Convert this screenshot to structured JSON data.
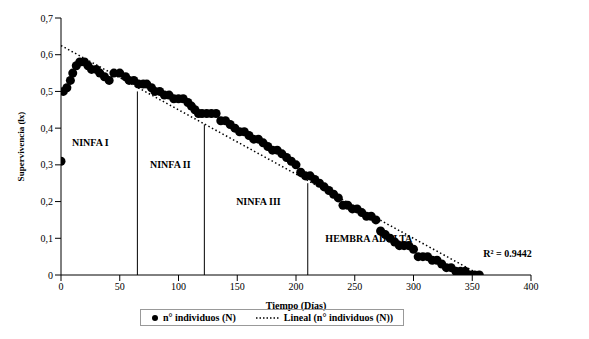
{
  "chart_data": {
    "type": "scatter",
    "x_label": "Tiempo (Días)",
    "y_label": "Supervivencia (lx)",
    "xlim": [
      0,
      400
    ],
    "xticks": [
      0,
      50,
      100,
      150,
      200,
      250,
      300,
      350,
      400
    ],
    "ylim": [
      0,
      0.7
    ],
    "yticks": [
      0,
      {
        "value": 0.1,
        "label": "0,1"
      },
      {
        "value": 0.2,
        "label": "0,2"
      },
      {
        "value": 0.3,
        "label": "0,3"
      },
      {
        "value": 0.4,
        "label": "0,4"
      },
      {
        "value": 0.5,
        "label": "0,5"
      },
      {
        "value": 0.6,
        "label": "0,6"
      },
      {
        "value": 0.7,
        "label": "0,7"
      }
    ],
    "grid": false,
    "legend": "bottom",
    "series": [
      {
        "name": "n° individuos (N)",
        "type": "scatter",
        "color": "#000000",
        "marker": "circle",
        "x": [
          0,
          2,
          5,
          8,
          10,
          13,
          16,
          20,
          23,
          26,
          30,
          33,
          37,
          41,
          45,
          50,
          55,
          58,
          62,
          66,
          70,
          73,
          77,
          80,
          84,
          88,
          92,
          96,
          100,
          104,
          108,
          111,
          114,
          117,
          120,
          124,
          128,
          132,
          136,
          140,
          144,
          148,
          152,
          156,
          160,
          164,
          168,
          172,
          176,
          180,
          184,
          188,
          192,
          196,
          200,
          204,
          208,
          212,
          216,
          220,
          224,
          228,
          232,
          236,
          240,
          244,
          248,
          252,
          256,
          260,
          264,
          268,
          272,
          276,
          280,
          284,
          288,
          292,
          296,
          300,
          304,
          308,
          312,
          316,
          320,
          324,
          328,
          332,
          336,
          340,
          344,
          348,
          352,
          356
        ],
        "values": [
          0.31,
          0.5,
          0.51,
          0.53,
          0.55,
          0.57,
          0.58,
          0.58,
          0.57,
          0.56,
          0.56,
          0.55,
          0.54,
          0.53,
          0.55,
          0.55,
          0.54,
          0.53,
          0.53,
          0.52,
          0.52,
          0.52,
          0.51,
          0.5,
          0.5,
          0.49,
          0.49,
          0.48,
          0.48,
          0.48,
          0.47,
          0.46,
          0.45,
          0.44,
          0.44,
          0.44,
          0.44,
          0.44,
          0.42,
          0.42,
          0.41,
          0.4,
          0.39,
          0.39,
          0.38,
          0.37,
          0.37,
          0.36,
          0.35,
          0.34,
          0.34,
          0.33,
          0.32,
          0.31,
          0.3,
          0.28,
          0.27,
          0.27,
          0.26,
          0.25,
          0.24,
          0.23,
          0.22,
          0.21,
          0.19,
          0.19,
          0.18,
          0.18,
          0.17,
          0.16,
          0.16,
          0.15,
          0.12,
          0.11,
          0.1,
          0.09,
          0.08,
          0.08,
          0.08,
          0.07,
          0.05,
          0.05,
          0.05,
          0.04,
          0.04,
          0.03,
          0.02,
          0.02,
          0.01,
          0.01,
          0.01,
          0,
          0,
          0
        ]
      },
      {
        "name": "Lineal (n° individuos (N))",
        "type": "line",
        "color": "#000000",
        "line_style": "dotted",
        "x": [
          0,
          357
        ],
        "values": [
          0.625,
          0
        ]
      }
    ],
    "boundaries": [
      {
        "x": 65,
        "y": 0.5
      },
      {
        "x": 122,
        "y": 0.41
      },
      {
        "x": 210,
        "y": 0.25
      }
    ],
    "annotations": [
      {
        "text": "NINFA I",
        "x": 25,
        "y": 0.36
      },
      {
        "text": "NINFA II",
        "x": 93,
        "y": 0.3
      },
      {
        "text": "NINFA III",
        "x": 168,
        "y": 0.2
      },
      {
        "text": "HEMBRA ADULTA",
        "x": 262,
        "y": 0.1
      },
      {
        "text": "R² = 0.9442",
        "x": 380,
        "y": 0.06
      }
    ]
  }
}
